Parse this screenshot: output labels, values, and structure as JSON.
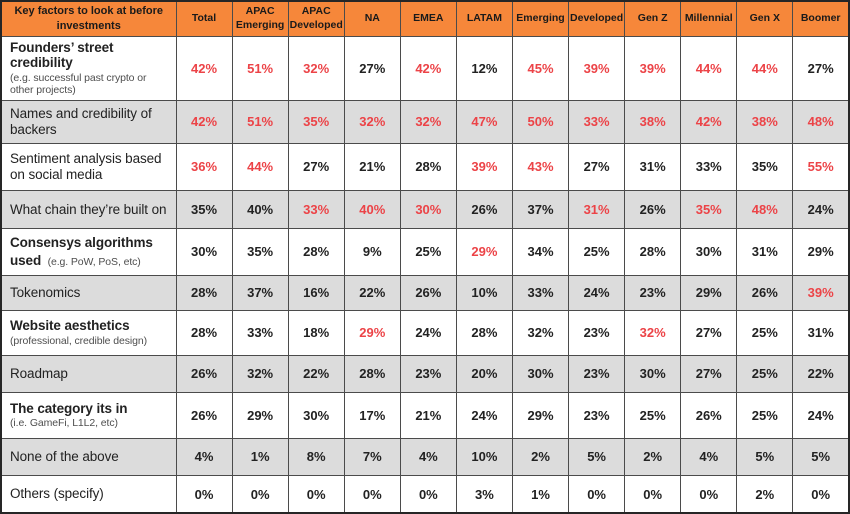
{
  "colors": {
    "header_bg": "#F6873A",
    "header_text": "#1A1A1A",
    "highlight_red": "#EC4347",
    "alt_row_bg": "#DCDCDC",
    "grid_border": "#4B4B4B",
    "body_text": "#222222",
    "sublabel_text": "#4E4E4E"
  },
  "chart_data": {
    "type": "table",
    "title": "Key factors to look at before investments",
    "columns": [
      "Total",
      "APAC Emerging",
      "APAC Developed",
      "NA",
      "EMEA",
      "LATAM",
      "Emerging",
      "Developed",
      "Gen Z",
      "Millennial",
      "Gen X",
      "Boomer"
    ],
    "rows": [
      {
        "label": "Founders’ street credibility",
        "sublabel": "(e.g. successful past crypto or other projects)",
        "sublabel_inline": false,
        "values": [
          "42%",
          "51%",
          "32%",
          "27%",
          "42%",
          "12%",
          "45%",
          "39%",
          "39%",
          "44%",
          "44%",
          "27%"
        ],
        "highlighted": [
          1,
          1,
          1,
          0,
          1,
          0,
          1,
          1,
          1,
          1,
          1,
          0
        ]
      },
      {
        "label": "Names and credibility of backers",
        "sublabel": "",
        "sublabel_inline": false,
        "values": [
          "42%",
          "51%",
          "35%",
          "32%",
          "32%",
          "47%",
          "50%",
          "33%",
          "38%",
          "42%",
          "38%",
          "48%"
        ],
        "highlighted": [
          1,
          1,
          1,
          1,
          1,
          1,
          1,
          1,
          1,
          1,
          1,
          1
        ]
      },
      {
        "label": "Sentiment analysis based on social media",
        "sublabel": "",
        "sublabel_inline": false,
        "values": [
          "36%",
          "44%",
          "27%",
          "21%",
          "28%",
          "39%",
          "43%",
          "27%",
          "31%",
          "33%",
          "35%",
          "55%"
        ],
        "highlighted": [
          1,
          1,
          0,
          0,
          0,
          1,
          1,
          0,
          0,
          0,
          0,
          1
        ]
      },
      {
        "label": "What chain they’re built on",
        "sublabel": "",
        "sublabel_inline": false,
        "values": [
          "35%",
          "40%",
          "33%",
          "40%",
          "30%",
          "26%",
          "37%",
          "31%",
          "26%",
          "35%",
          "48%",
          "24%"
        ],
        "highlighted": [
          0,
          0,
          1,
          1,
          1,
          0,
          0,
          1,
          0,
          1,
          1,
          0
        ]
      },
      {
        "label": "Consensys algorithms used",
        "sublabel": "(e.g. PoW, PoS, etc)",
        "sublabel_inline": true,
        "values": [
          "30%",
          "35%",
          "28%",
          "9%",
          "25%",
          "29%",
          "34%",
          "25%",
          "28%",
          "30%",
          "31%",
          "29%"
        ],
        "highlighted": [
          0,
          0,
          0,
          0,
          0,
          1,
          0,
          0,
          0,
          0,
          0,
          0
        ]
      },
      {
        "label": "Tokenomics",
        "sublabel": "",
        "sublabel_inline": false,
        "values": [
          "28%",
          "37%",
          "16%",
          "22%",
          "26%",
          "10%",
          "33%",
          "24%",
          "23%",
          "29%",
          "26%",
          "39%"
        ],
        "highlighted": [
          0,
          0,
          0,
          0,
          0,
          0,
          0,
          0,
          0,
          0,
          0,
          1
        ]
      },
      {
        "label": "Website aesthetics",
        "sublabel": "(professional, credible design)",
        "sublabel_inline": false,
        "values": [
          "28%",
          "33%",
          "18%",
          "29%",
          "24%",
          "28%",
          "32%",
          "23%",
          "32%",
          "27%",
          "25%",
          "31%"
        ],
        "highlighted": [
          0,
          0,
          0,
          1,
          0,
          0,
          0,
          0,
          1,
          0,
          0,
          0
        ]
      },
      {
        "label": "Roadmap",
        "sublabel": "",
        "sublabel_inline": false,
        "values": [
          "26%",
          "32%",
          "22%",
          "28%",
          "23%",
          "20%",
          "30%",
          "23%",
          "30%",
          "27%",
          "25%",
          "22%"
        ],
        "highlighted": [
          0,
          0,
          0,
          0,
          0,
          0,
          0,
          0,
          0,
          0,
          0,
          0
        ]
      },
      {
        "label": "The category its in",
        "sublabel": "(i.e. GameFi, L1L2, etc)",
        "sublabel_inline": false,
        "values": [
          "26%",
          "29%",
          "30%",
          "17%",
          "21%",
          "24%",
          "29%",
          "23%",
          "25%",
          "26%",
          "25%",
          "24%"
        ],
        "highlighted": [
          0,
          0,
          0,
          0,
          0,
          0,
          0,
          0,
          0,
          0,
          0,
          0
        ]
      },
      {
        "label": "None of the above",
        "sublabel": "",
        "sublabel_inline": false,
        "values": [
          "4%",
          "1%",
          "8%",
          "7%",
          "4%",
          "10%",
          "2%",
          "5%",
          "2%",
          "4%",
          "5%",
          "5%"
        ],
        "highlighted": [
          0,
          0,
          0,
          0,
          0,
          0,
          0,
          0,
          0,
          0,
          0,
          0
        ]
      },
      {
        "label": "Others (specify)",
        "sublabel": "",
        "sublabel_inline": false,
        "values": [
          "0%",
          "0%",
          "0%",
          "0%",
          "0%",
          "3%",
          "1%",
          "0%",
          "0%",
          "0%",
          "2%",
          "0%"
        ],
        "highlighted": [
          0,
          0,
          0,
          0,
          0,
          0,
          0,
          0,
          0,
          0,
          0,
          0
        ]
      }
    ]
  }
}
